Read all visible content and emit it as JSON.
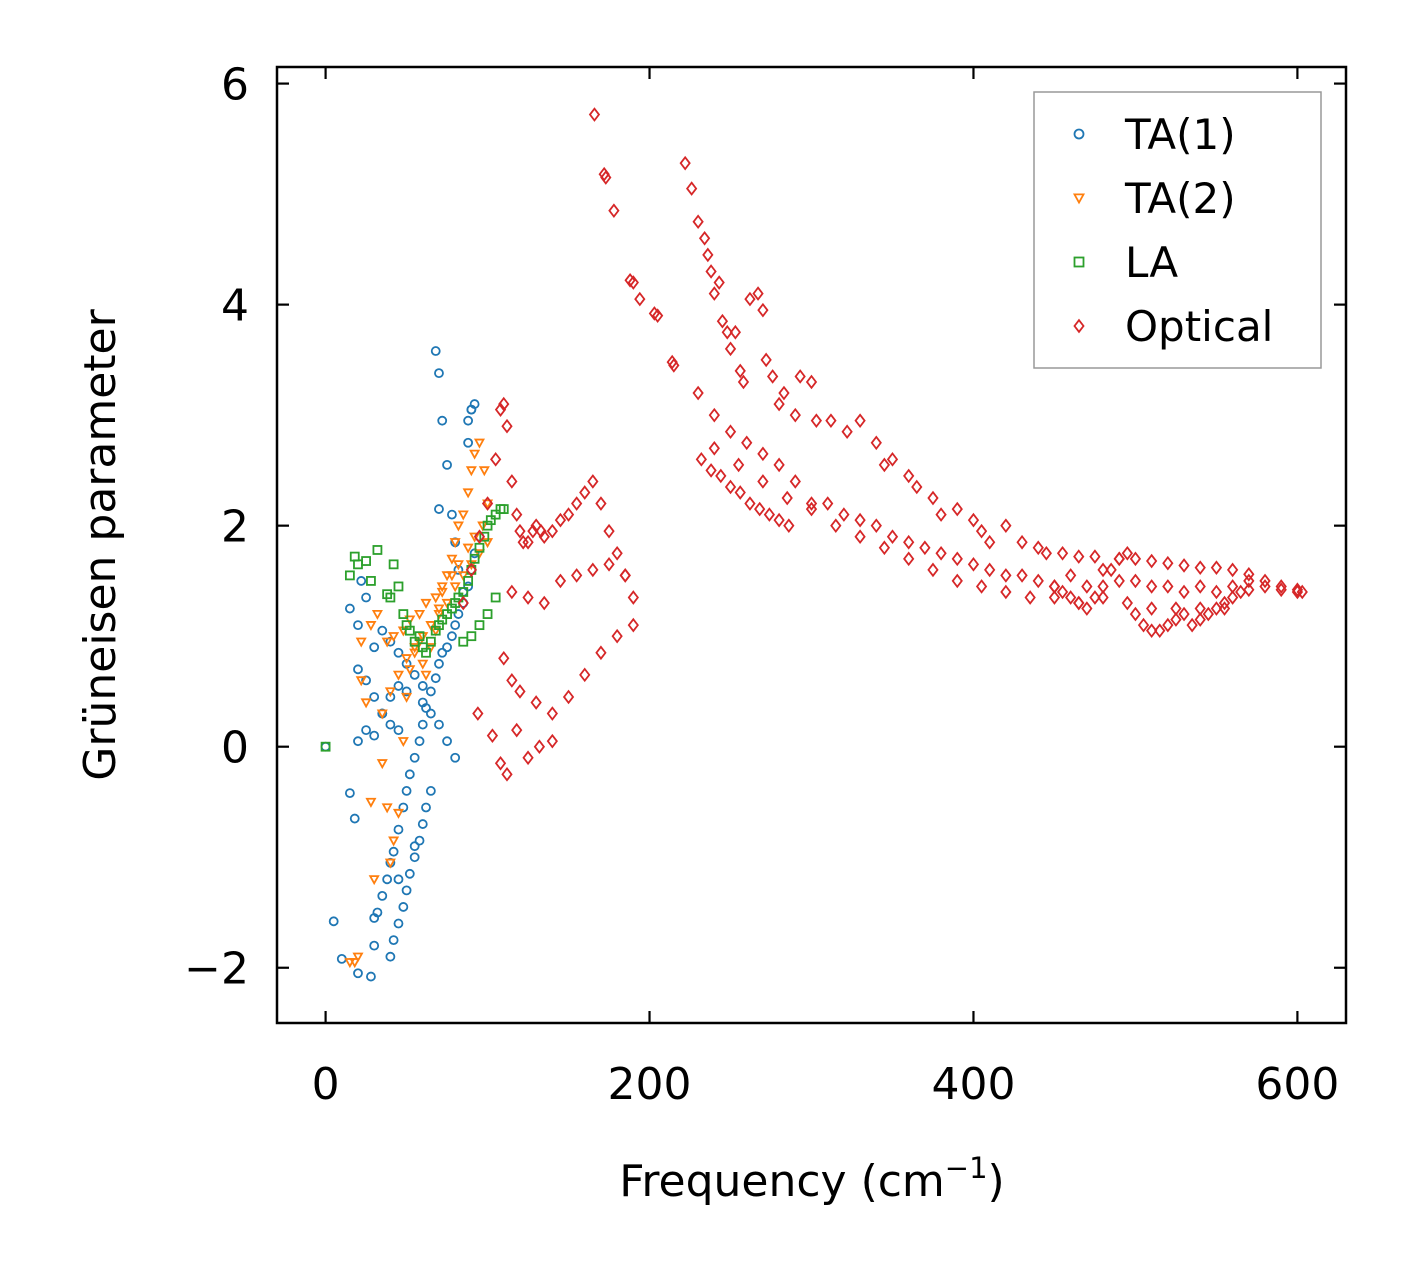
{
  "chart_data": {
    "type": "scatter",
    "title": "",
    "xlabel": "Frequency (cm",
    "xlabel_sup": "−1",
    "xlabel_end": ")",
    "ylabel": "Grüneisen parameter",
    "xlim": [
      -30,
      630
    ],
    "ylim": [
      -2.5,
      6.15
    ],
    "xticks": [
      0,
      200,
      400,
      600
    ],
    "yticks": [
      -2,
      0,
      2,
      4,
      6
    ],
    "xtick_labels": [
      "0",
      "200",
      "400",
      "600"
    ],
    "ytick_labels": [
      "−2",
      "0",
      "2",
      "4",
      "6"
    ],
    "grid": false,
    "legend_position": "top-right",
    "series": [
      {
        "name": "TA(1)",
        "marker": "circle",
        "color": "#1f77b4",
        "x": [
          0,
          5,
          10,
          15,
          18,
          20,
          22,
          25,
          28,
          30,
          32,
          35,
          38,
          40,
          42,
          45,
          48,
          50,
          52,
          55,
          58,
          60,
          62,
          65,
          68,
          70,
          72,
          75,
          78,
          80,
          82,
          85,
          88,
          90,
          92,
          95,
          68,
          70,
          72,
          75,
          78,
          80,
          82,
          85,
          88,
          90,
          40,
          42,
          45,
          48,
          50,
          52,
          55,
          58,
          60,
          62,
          65,
          30,
          35,
          40,
          45,
          50,
          60,
          65,
          70,
          75,
          80,
          20,
          25,
          30,
          35,
          40,
          45,
          50,
          55,
          60,
          15,
          20,
          25,
          30,
          35,
          40,
          45,
          20,
          30,
          45,
          55,
          70,
          88,
          90,
          92
        ],
        "y": [
          0.0,
          -1.58,
          -1.92,
          -0.42,
          -0.65,
          0.7,
          1.5,
          1.35,
          -2.08,
          -1.8,
          -1.5,
          -1.35,
          -1.2,
          -1.05,
          -0.95,
          -0.75,
          -0.55,
          -0.4,
          -0.25,
          -0.1,
          0.05,
          0.2,
          0.35,
          0.5,
          0.62,
          0.75,
          0.85,
          0.9,
          1.0,
          1.1,
          1.2,
          1.3,
          1.45,
          1.6,
          1.75,
          1.9,
          3.58,
          3.38,
          2.95,
          2.55,
          2.1,
          1.85,
          1.6,
          1.4,
          2.75,
          3.05,
          -1.9,
          -1.75,
          -1.6,
          -1.45,
          -1.3,
          -1.15,
          -1.0,
          -0.85,
          -0.7,
          -0.55,
          -0.4,
          0.1,
          0.3,
          0.45,
          0.55,
          0.5,
          0.4,
          0.3,
          0.2,
          0.05,
          -0.1,
          0.05,
          0.15,
          0.9,
          1.05,
          0.95,
          0.85,
          0.75,
          0.65,
          0.55,
          1.25,
          1.1,
          0.6,
          0.45,
          0.3,
          0.2,
          0.15,
          -2.05,
          -1.55,
          -1.2,
          -0.9,
          2.15,
          2.95,
          3.05,
          3.1
        ]
      },
      {
        "name": "TA(2)",
        "marker": "triangle-down",
        "color": "#ff7f0e",
        "x": [
          15,
          18,
          20,
          22,
          25,
          28,
          30,
          35,
          38,
          40,
          42,
          45,
          48,
          50,
          52,
          55,
          58,
          60,
          62,
          65,
          68,
          70,
          72,
          75,
          78,
          80,
          82,
          85,
          88,
          90,
          92,
          95,
          98,
          100,
          35,
          40,
          45,
          50,
          55,
          60,
          65,
          70,
          75,
          80,
          85,
          90,
          95,
          100,
          22,
          28,
          32,
          38,
          42,
          48,
          52,
          58,
          62,
          68,
          72,
          78,
          82,
          88,
          92,
          97
        ],
        "y": [
          -1.95,
          -1.95,
          -1.9,
          0.6,
          0.4,
          -0.5,
          -1.2,
          -0.15,
          -0.55,
          -1.05,
          -0.85,
          -0.6,
          0.05,
          0.45,
          0.7,
          0.85,
          0.95,
          0.75,
          0.65,
          0.9,
          1.05,
          1.25,
          1.4,
          1.55,
          1.7,
          1.85,
          2.0,
          2.1,
          2.3,
          2.5,
          2.65,
          2.75,
          2.5,
          2.2,
          0.3,
          0.5,
          0.65,
          0.8,
          0.9,
          1.0,
          1.1,
          1.2,
          1.3,
          1.45,
          1.55,
          1.65,
          1.75,
          1.85,
          0.95,
          1.1,
          1.2,
          0.95,
          1.0,
          1.05,
          1.15,
          1.2,
          1.3,
          1.35,
          1.45,
          1.55,
          1.65,
          1.8,
          1.9,
          2.0
        ]
      },
      {
        "name": "LA",
        "marker": "square",
        "color": "#2ca02c",
        "x": [
          0,
          15,
          18,
          20,
          25,
          28,
          32,
          38,
          40,
          42,
          45,
          48,
          50,
          52,
          55,
          58,
          60,
          62,
          65,
          68,
          70,
          72,
          75,
          78,
          80,
          82,
          85,
          88,
          90,
          92,
          95,
          98,
          100,
          102,
          105,
          108,
          110,
          85,
          90,
          95,
          100,
          105
        ],
        "y": [
          0.0,
          1.55,
          1.72,
          1.65,
          1.68,
          1.5,
          1.78,
          1.38,
          1.35,
          1.65,
          1.45,
          1.2,
          1.1,
          1.05,
          0.95,
          1.0,
          0.9,
          0.85,
          0.95,
          1.05,
          1.1,
          1.15,
          1.2,
          1.25,
          1.3,
          1.35,
          1.4,
          1.5,
          1.6,
          1.7,
          1.8,
          1.9,
          2.0,
          2.05,
          2.1,
          2.15,
          2.15,
          0.95,
          1.0,
          1.1,
          1.2,
          1.35
        ]
      },
      {
        "name": "Optical",
        "marker": "diamond",
        "color": "#d62728",
        "x": [
          166,
          172,
          173,
          178,
          188,
          190,
          194,
          203,
          205,
          214,
          215,
          222,
          226,
          230,
          234,
          236,
          238,
          240,
          243,
          245,
          248,
          250,
          253,
          256,
          258,
          262,
          267,
          270,
          272,
          276,
          280,
          283,
          290,
          293,
          300,
          303,
          312,
          322,
          330,
          340,
          345,
          350,
          360,
          365,
          375,
          380,
          390,
          400,
          405,
          410,
          420,
          430,
          440,
          445,
          455,
          465,
          475,
          490,
          500,
          510,
          520,
          530,
          540,
          550,
          560,
          570,
          580,
          590,
          600,
          603,
          85,
          90,
          95,
          100,
          105,
          108,
          110,
          112,
          115,
          118,
          120,
          122,
          125,
          128,
          130,
          133,
          135,
          140,
          145,
          150,
          155,
          160,
          165,
          170,
          175,
          180,
          185,
          190,
          94,
          103,
          108,
          112,
          118,
          125,
          132,
          140,
          110,
          115,
          120,
          130,
          140,
          150,
          160,
          170,
          180,
          190,
          115,
          125,
          135,
          145,
          155,
          165,
          175,
          185,
          300,
          320,
          340,
          360,
          380,
          400,
          420,
          440,
          460,
          480,
          500,
          520,
          540,
          560,
          580,
          600,
          230,
          240,
          250,
          260,
          270,
          280,
          290,
          310,
          330,
          350,
          370,
          390,
          410,
          430,
          450,
          470,
          490,
          510,
          530,
          550,
          570,
          590,
          240,
          255,
          270,
          285,
          300,
          315,
          330,
          345,
          360,
          375,
          390,
          405,
          420,
          435,
          450,
          465,
          480,
          495,
          510,
          525,
          540,
          555,
          500,
          505,
          510,
          515,
          520,
          525,
          530,
          535,
          540,
          545,
          550,
          555,
          560,
          565,
          570,
          450,
          455,
          460,
          465,
          470,
          475,
          480,
          485,
          490,
          495,
          232,
          238,
          244,
          250,
          256,
          262,
          268,
          274,
          280,
          286
        ],
        "y": [
          5.72,
          5.18,
          5.15,
          4.85,
          4.22,
          4.2,
          4.05,
          3.92,
          3.9,
          3.48,
          3.45,
          5.28,
          5.05,
          4.75,
          4.6,
          4.45,
          4.3,
          4.1,
          4.2,
          3.85,
          3.75,
          3.6,
          3.75,
          3.4,
          3.3,
          4.05,
          4.1,
          3.95,
          3.5,
          3.35,
          3.1,
          3.2,
          3.0,
          3.35,
          3.3,
          2.95,
          2.95,
          2.85,
          2.95,
          2.75,
          2.55,
          2.6,
          2.45,
          2.35,
          2.25,
          2.1,
          2.15,
          2.05,
          1.95,
          1.85,
          2.0,
          1.85,
          1.8,
          1.75,
          1.75,
          1.72,
          1.72,
          1.7,
          1.7,
          1.68,
          1.66,
          1.64,
          1.62,
          1.62,
          1.6,
          1.56,
          1.5,
          1.45,
          1.42,
          1.4,
          1.3,
          1.6,
          1.9,
          2.2,
          2.6,
          3.05,
          3.1,
          2.9,
          2.4,
          2.1,
          1.95,
          1.85,
          1.85,
          1.95,
          2.0,
          1.95,
          1.9,
          1.95,
          2.05,
          2.1,
          2.2,
          2.3,
          2.4,
          2.2,
          1.95,
          1.75,
          1.55,
          1.35,
          0.3,
          0.1,
          -0.15,
          -0.25,
          0.15,
          -0.1,
          0.0,
          0.05,
          0.8,
          0.6,
          0.5,
          0.4,
          0.3,
          0.45,
          0.65,
          0.85,
          1.0,
          1.1,
          1.4,
          1.35,
          1.3,
          1.5,
          1.55,
          1.6,
          1.65,
          1.55,
          2.2,
          2.1,
          2.0,
          1.85,
          1.75,
          1.65,
          1.55,
          1.5,
          1.55,
          1.6,
          1.5,
          1.45,
          1.45,
          1.45,
          1.45,
          1.4,
          3.2,
          3.0,
          2.85,
          2.75,
          2.65,
          2.55,
          2.4,
          2.2,
          2.05,
          1.9,
          1.8,
          1.7,
          1.6,
          1.55,
          1.45,
          1.45,
          1.5,
          1.45,
          1.4,
          1.4,
          1.42,
          1.42,
          2.7,
          2.55,
          2.4,
          2.25,
          2.15,
          2.0,
          1.9,
          1.8,
          1.7,
          1.6,
          1.5,
          1.45,
          1.4,
          1.35,
          1.35,
          1.3,
          1.35,
          1.3,
          1.25,
          1.25,
          1.25,
          1.25,
          1.2,
          1.1,
          1.05,
          1.05,
          1.1,
          1.15,
          1.2,
          1.1,
          1.15,
          1.2,
          1.25,
          1.3,
          1.35,
          1.4,
          1.5,
          1.45,
          1.4,
          1.35,
          1.3,
          1.25,
          1.35,
          1.45,
          1.6,
          1.7,
          1.75,
          2.6,
          2.5,
          2.45,
          2.35,
          2.3,
          2.2,
          2.15,
          2.1,
          2.05,
          2.0
        ]
      }
    ]
  }
}
